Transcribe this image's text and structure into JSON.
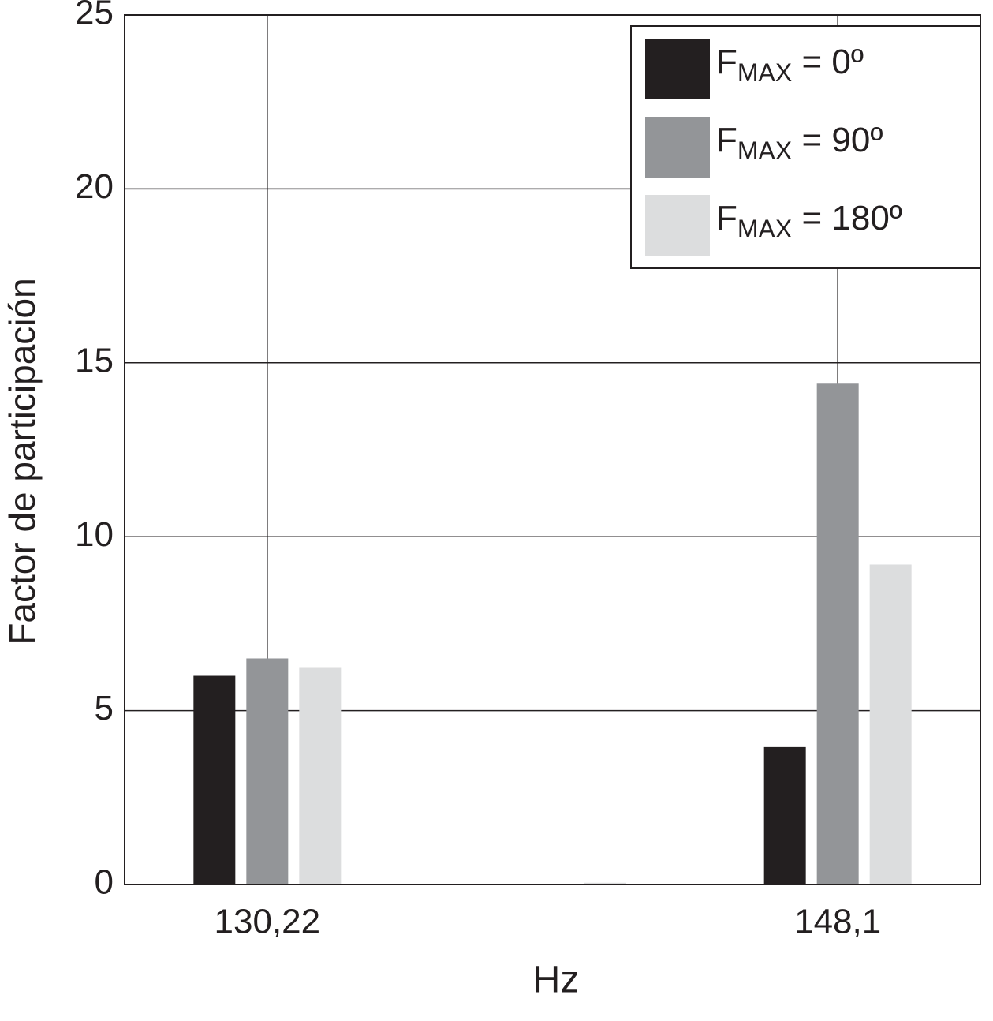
{
  "chart_data": {
    "type": "bar",
    "x_label": "Hz",
    "y_label": "Factor de participación",
    "categories": [
      "130,22",
      null,
      "148,1"
    ],
    "series": [
      {
        "name": "FMAX = 0º",
        "color": "#231f20",
        "values": [
          6.0,
          0,
          3.95
        ]
      },
      {
        "name": "FMAX = 90º",
        "color": "#939598",
        "values": [
          6.5,
          0,
          14.4
        ]
      },
      {
        "name": "FMAX = 180º",
        "color": "#dcddde",
        "values": [
          6.25,
          0.05,
          9.2
        ]
      }
    ],
    "ylim": [
      0,
      25
    ],
    "yticks": [
      0,
      5,
      10,
      15,
      20,
      25
    ],
    "grid": true,
    "legend": "upper-right"
  }
}
